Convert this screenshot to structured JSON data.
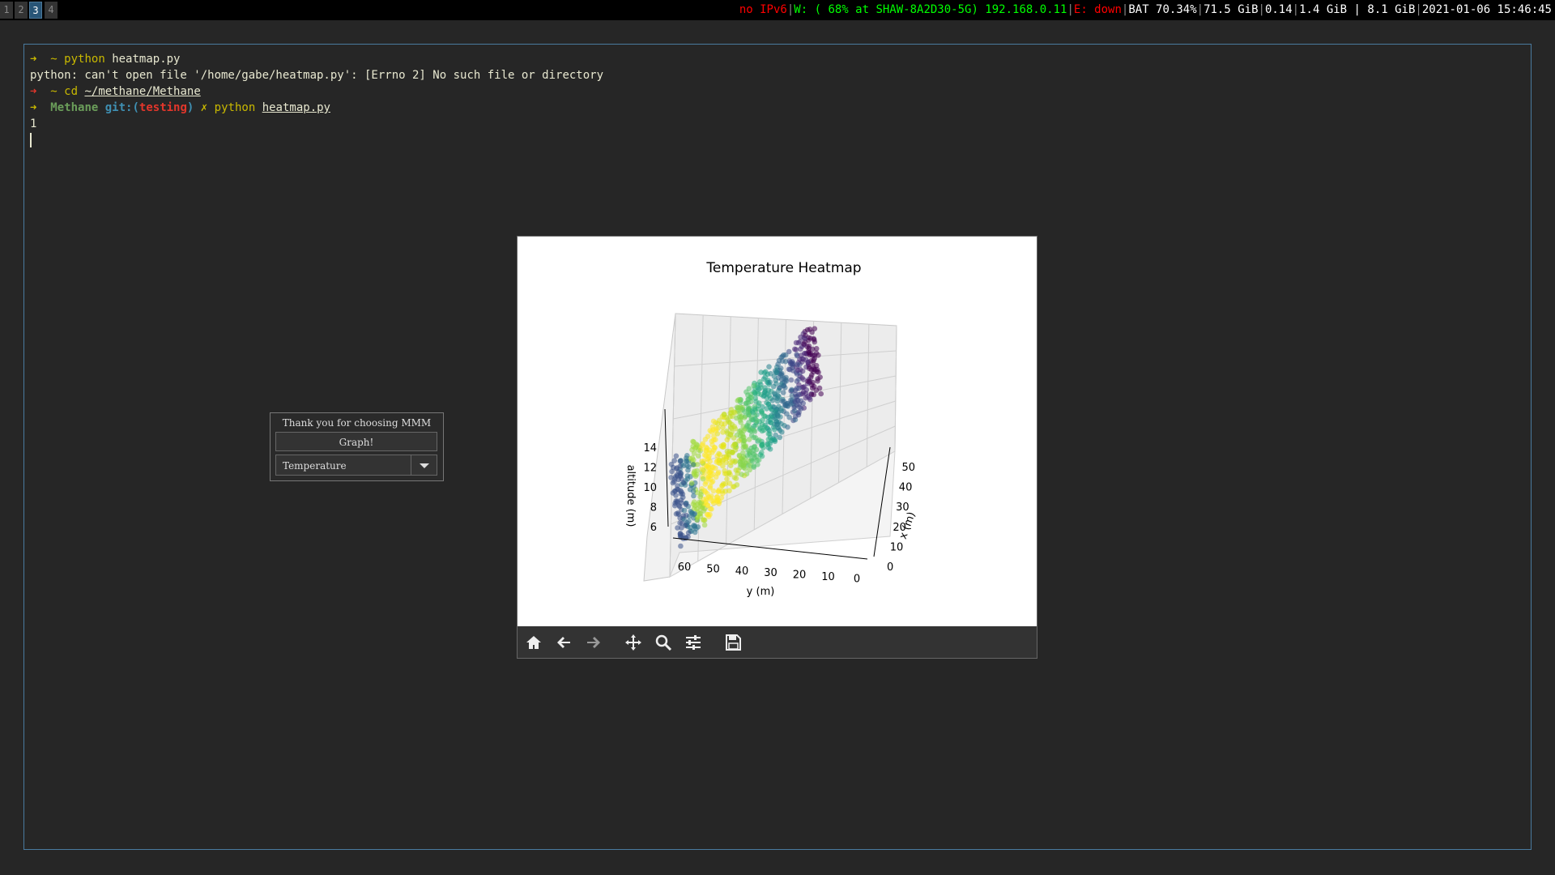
{
  "bar": {
    "workspaces": [
      "1",
      "2",
      "3",
      "4"
    ],
    "active_workspace": "3",
    "status": {
      "ipv6": "no IPv6",
      "wifi": "W: ( 68% at SHAW-8A2D30-5G) 192.168.0.11",
      "eth": "E: down",
      "battery": "BAT 70.34%",
      "disk": "71.5 GiB",
      "load": "0.14",
      "mem": "1.4 GiB | 8.1 GiB",
      "datetime": "2021-01-06 15:46:45"
    }
  },
  "terminal": {
    "line1": {
      "arrow": "➜",
      "tilde": "~",
      "cmd": "python",
      "arg": "heatmap.py"
    },
    "line2": "python: can't open file '/home/gabe/heatmap.py': [Errno 2] No such file or directory",
    "line3": {
      "arrow": "➜",
      "tilde": "~",
      "cmd": "cd",
      "arg": "~/methane/Methane"
    },
    "line4": {
      "arrow": "➜",
      "dir": "Methane",
      "git": "git:(",
      "branch": "testing",
      "git_close": ")",
      "x": "✗",
      "cmd": "python",
      "arg": "heatmap.py"
    },
    "line5": "1"
  },
  "dialog": {
    "label": "Thank you for choosing MMM",
    "button": "Graph!",
    "selected": "Temperature"
  },
  "chart_data": {
    "type": "scatter",
    "title": "Temperature Heatmap",
    "xlabel": "x (m)",
    "ylabel": "y (m)",
    "zlabel": "altitude (m)",
    "x_ticks": [
      "0",
      "10",
      "20",
      "30",
      "40",
      "50"
    ],
    "y_ticks": [
      "60",
      "50",
      "40",
      "30",
      "20",
      "10",
      "0"
    ],
    "z_ticks": [
      "14",
      "12",
      "10",
      "8",
      "6"
    ],
    "xlim": [
      0,
      55
    ],
    "ylim": [
      0,
      65
    ],
    "zlim": [
      5,
      15
    ],
    "colormap": "viridis",
    "grid": true
  },
  "toolbar": {
    "icons": [
      "home-icon",
      "back-icon",
      "forward-icon",
      "pan-icon",
      "zoom-icon",
      "configure-icon",
      "save-icon"
    ]
  },
  "colors": {
    "terminal_border": "#4a7a9f",
    "active_workspace": "#285577"
  }
}
